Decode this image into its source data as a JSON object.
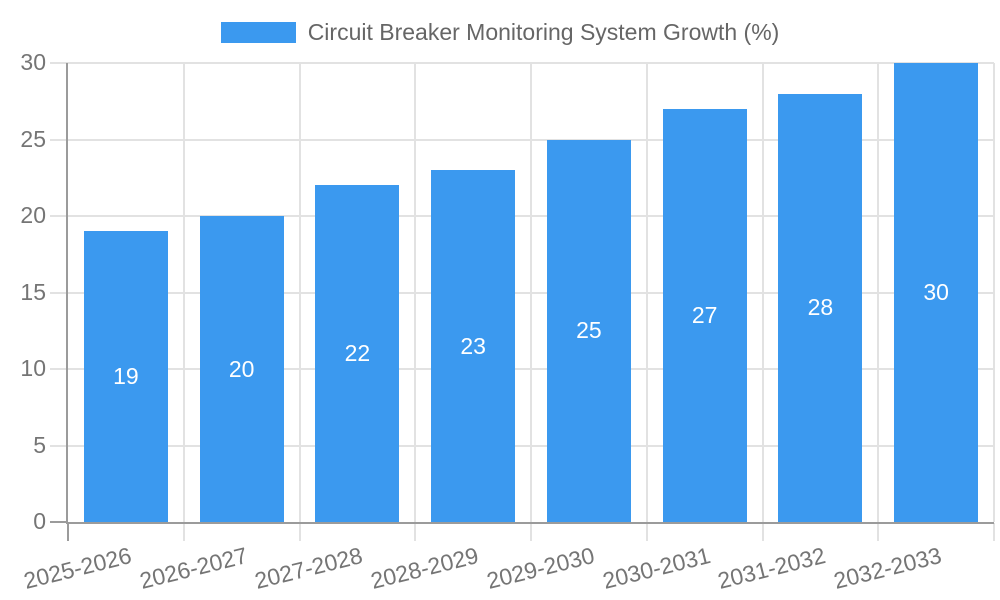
{
  "chart": {
    "colors": {
      "bar": "#3B99EF",
      "grid": "#E2E2E2",
      "axis": "#9B9B9B",
      "tick_text": "#757575",
      "legend_text": "#666666",
      "value_text": "#FFFFFF",
      "background": "#FFFFFF"
    }
  },
  "chart_data": {
    "type": "bar",
    "title": "Circuit Breaker Monitoring System Growth (%)",
    "categories": [
      "2025-2026",
      "2026-2027",
      "2027-2028",
      "2028-2029",
      "2029-2030",
      "2030-2031",
      "2031-2032",
      "2032-2033"
    ],
    "values": [
      19,
      20,
      22,
      23,
      25,
      27,
      28,
      30
    ],
    "bar_value_labels": [
      "19",
      "20",
      "22",
      "23",
      "25",
      "27",
      "28",
      "30"
    ],
    "xlabel": "",
    "ylabel": "",
    "ylim": [
      0,
      30
    ],
    "yticks": [
      0,
      5,
      10,
      15,
      20,
      25,
      30
    ],
    "grid": true,
    "legend_position": "top",
    "x_tick_rotation_deg": -14
  }
}
